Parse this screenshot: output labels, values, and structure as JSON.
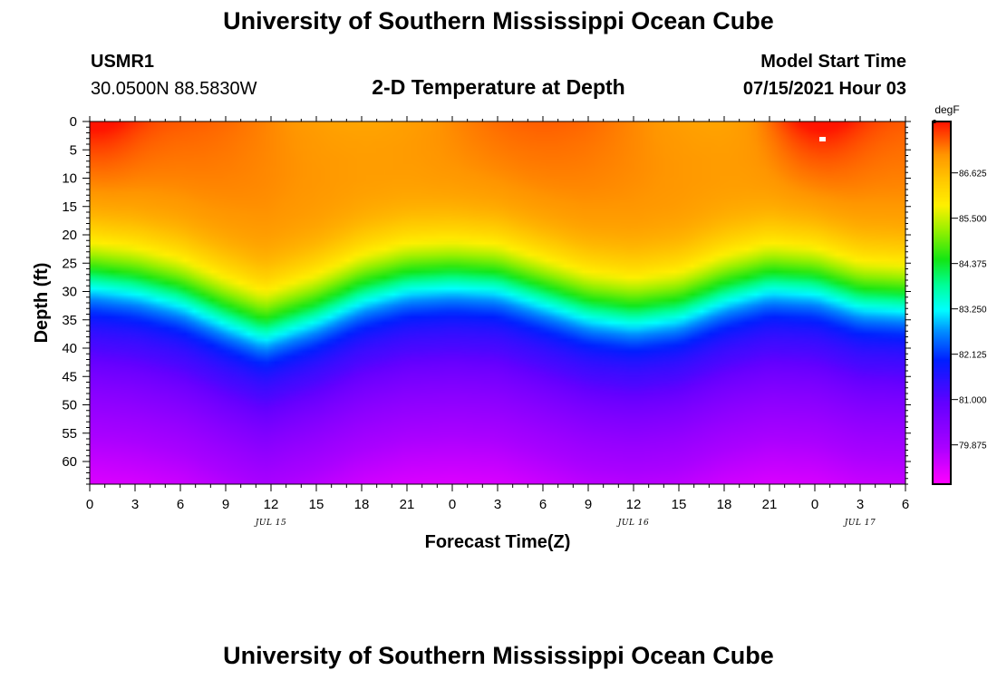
{
  "header": {
    "title_top": "University of Southern Mississippi Ocean Cube",
    "title_bottom": "University of Southern Mississippi Ocean Cube",
    "station_id": "USMR1",
    "station_coords": "30.0500N  88.5830W",
    "plot_title": "2-D Temperature at Depth",
    "model_label": "Model Start Time",
    "model_time": "07/15/2021 Hour 03"
  },
  "chart_data": {
    "type": "heatmap",
    "title": "2-D Temperature at Depth",
    "xlabel": "Forecast Time(Z)",
    "ylabel": "Depth (ft)",
    "x_tick_labels": [
      "0",
      "3",
      "6",
      "9",
      "12",
      "15",
      "18",
      "21",
      "0",
      "3",
      "6",
      "9",
      "12",
      "15",
      "18",
      "21",
      "0",
      "3",
      "6"
    ],
    "x_range_hours": [
      0,
      54
    ],
    "date_labels": [
      {
        "label": "JUL 15",
        "hour": 12
      },
      {
        "label": "JUL 16",
        "hour": 36
      },
      {
        "label": "JUL 17",
        "hour": 51
      }
    ],
    "y_tick_labels": [
      "0",
      "5",
      "10",
      "15",
      "20",
      "25",
      "30",
      "35",
      "40",
      "45",
      "50",
      "55",
      "60"
    ],
    "y_range_ft": [
      0,
      64
    ],
    "colorbar": {
      "unit": "degF",
      "min": 78.9,
      "max": 87.9,
      "tick_labels": [
        "86.625",
        "85.500",
        "84.375",
        "83.250",
        "82.125",
        "81.000",
        "79.875"
      ],
      "tick_values": [
        86.625,
        85.5,
        84.375,
        83.25,
        82.125,
        81.0,
        79.875
      ]
    },
    "thermocline_profile": {
      "hours": [
        0,
        3,
        6,
        9,
        11.5,
        15,
        18,
        21,
        24,
        27,
        30,
        33,
        36,
        39,
        42,
        45,
        48,
        51,
        54
      ],
      "green_center_depth_ft": [
        26,
        27,
        29,
        32.5,
        35,
        32,
        28.5,
        26.5,
        26,
        26.5,
        29,
        31.5,
        32.5,
        31.5,
        28.5,
        26.5,
        27,
        29.5,
        30
      ]
    },
    "surface_max_hours": [
      0,
      48
    ]
  }
}
